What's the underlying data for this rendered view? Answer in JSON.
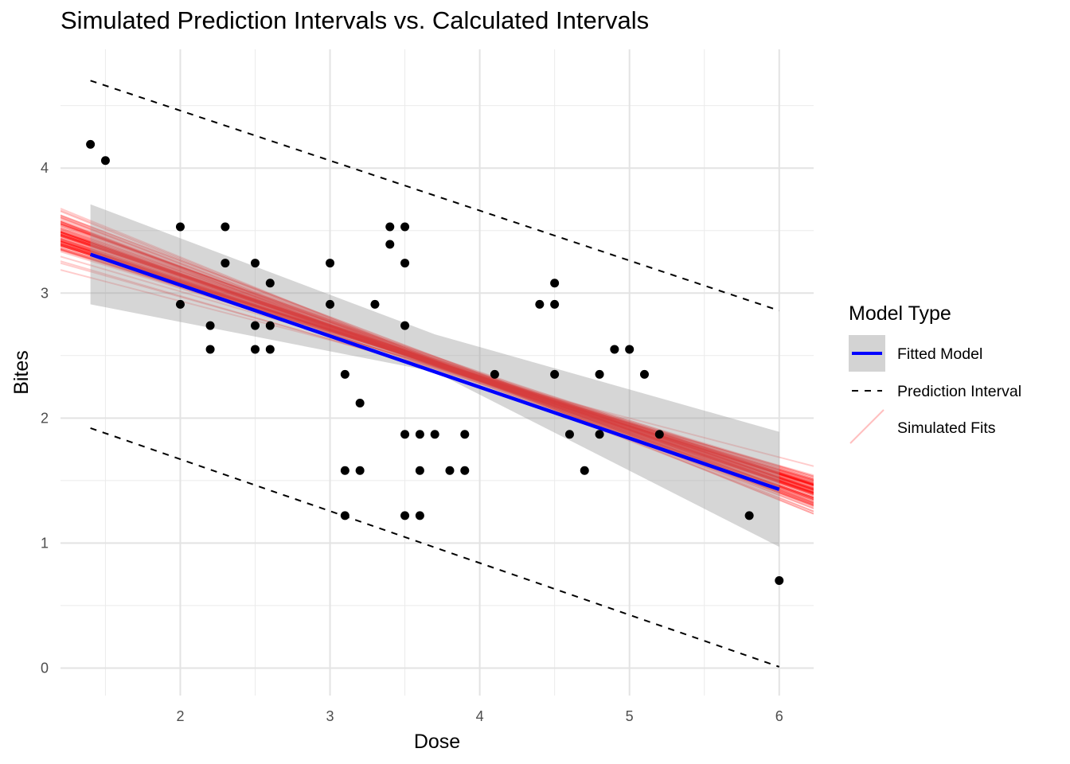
{
  "chart_data": {
    "type": "scatter",
    "title": "Simulated Prediction Intervals vs. Calculated Intervals",
    "xlabel": "Dose",
    "ylabel": "Bites",
    "xlim": [
      1.2,
      6.23
    ],
    "ylim": [
      -0.22,
      4.95
    ],
    "x_ticks": [
      "2",
      "3",
      "4",
      "5",
      "6"
    ],
    "y_ticks": [
      "0",
      "1",
      "2",
      "3",
      "4"
    ],
    "grid": true,
    "legend": {
      "title": "Model Type",
      "position": "right",
      "entries": [
        "Fitted Model",
        "Prediction Interval",
        "Simulated Fits"
      ]
    },
    "fitted_model": {
      "name": "Fitted Model",
      "x": [
        1.4,
        6.0
      ],
      "y": [
        3.31,
        1.43
      ],
      "confidence_band": {
        "x": [
          1.4,
          3.7,
          6.0
        ],
        "lower": [
          2.91,
          2.37,
          0.97
        ],
        "upper": [
          3.71,
          2.67,
          1.89
        ]
      },
      "color": "#0000ff"
    },
    "prediction_interval": {
      "name": "Prediction Interval",
      "x": [
        1.4,
        6.0
      ],
      "upper": [
        4.7,
        2.86
      ],
      "lower": [
        1.92,
        0.01
      ],
      "color": "#000000"
    },
    "simulated_fits": {
      "name": "Simulated Fits",
      "count": 100,
      "color": "#ff0000",
      "intercept_range": [
        3.88,
        4.04
      ],
      "slope_range": [
        -0.56,
        -0.26
      ]
    },
    "points": [
      {
        "x": 1.4,
        "y": 4.19
      },
      {
        "x": 1.5,
        "y": 4.06
      },
      {
        "x": 2.0,
        "y": 3.53
      },
      {
        "x": 2.0,
        "y": 2.91
      },
      {
        "x": 2.2,
        "y": 2.74
      },
      {
        "x": 2.2,
        "y": 2.55
      },
      {
        "x": 2.3,
        "y": 3.53
      },
      {
        "x": 2.3,
        "y": 3.24
      },
      {
        "x": 2.5,
        "y": 3.24
      },
      {
        "x": 2.5,
        "y": 2.74
      },
      {
        "x": 2.5,
        "y": 2.55
      },
      {
        "x": 2.6,
        "y": 3.08
      },
      {
        "x": 2.6,
        "y": 2.74
      },
      {
        "x": 2.6,
        "y": 2.55
      },
      {
        "x": 3.0,
        "y": 3.24
      },
      {
        "x": 3.0,
        "y": 2.91
      },
      {
        "x": 3.1,
        "y": 2.35
      },
      {
        "x": 3.1,
        "y": 1.58
      },
      {
        "x": 3.1,
        "y": 1.22
      },
      {
        "x": 3.2,
        "y": 2.12
      },
      {
        "x": 3.2,
        "y": 1.58
      },
      {
        "x": 3.3,
        "y": 2.91
      },
      {
        "x": 3.4,
        "y": 3.53
      },
      {
        "x": 3.4,
        "y": 3.39
      },
      {
        "x": 3.5,
        "y": 3.53
      },
      {
        "x": 3.5,
        "y": 3.24
      },
      {
        "x": 3.5,
        "y": 2.74
      },
      {
        "x": 3.5,
        "y": 1.87
      },
      {
        "x": 3.5,
        "y": 1.22
      },
      {
        "x": 3.6,
        "y": 1.87
      },
      {
        "x": 3.6,
        "y": 1.58
      },
      {
        "x": 3.6,
        "y": 1.22
      },
      {
        "x": 3.7,
        "y": 1.87
      },
      {
        "x": 3.8,
        "y": 1.58
      },
      {
        "x": 3.9,
        "y": 1.87
      },
      {
        "x": 3.9,
        "y": 1.58
      },
      {
        "x": 4.1,
        "y": 2.35
      },
      {
        "x": 4.4,
        "y": 2.91
      },
      {
        "x": 4.5,
        "y": 3.08
      },
      {
        "x": 4.5,
        "y": 2.91
      },
      {
        "x": 4.5,
        "y": 2.35
      },
      {
        "x": 4.6,
        "y": 1.87
      },
      {
        "x": 4.7,
        "y": 1.58
      },
      {
        "x": 4.8,
        "y": 2.35
      },
      {
        "x": 4.8,
        "y": 1.87
      },
      {
        "x": 4.9,
        "y": 2.55
      },
      {
        "x": 5.0,
        "y": 2.55
      },
      {
        "x": 5.1,
        "y": 2.35
      },
      {
        "x": 5.2,
        "y": 1.87
      },
      {
        "x": 5.8,
        "y": 1.22
      },
      {
        "x": 6.0,
        "y": 0.7
      }
    ]
  }
}
